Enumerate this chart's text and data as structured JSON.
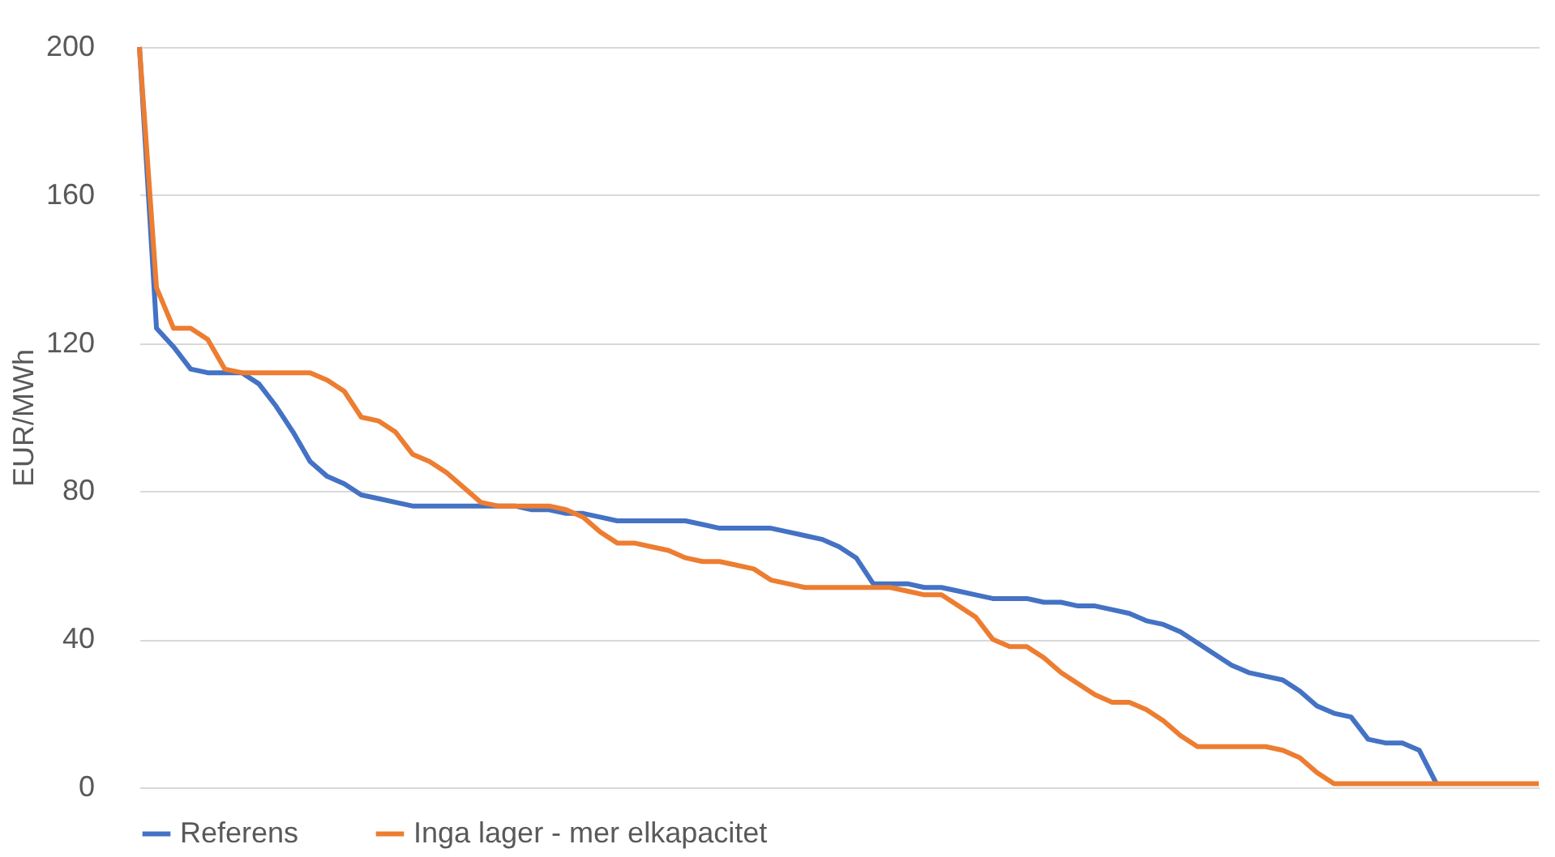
{
  "chart_data": {
    "type": "line",
    "ylabel": "EUR/MWh",
    "ylim": [
      0,
      200
    ],
    "yticks": [
      0,
      40,
      80,
      120,
      160,
      200
    ],
    "grid": "y",
    "legend": "bottom",
    "line_style": "solid",
    "marker": "none",
    "categories": [
      null,
      null,
      null,
      null,
      null,
      null,
      null,
      null,
      null,
      null,
      null,
      null,
      null,
      null,
      null,
      null,
      null,
      null,
      null,
      null,
      null,
      null,
      null,
      null,
      null,
      null,
      null,
      null,
      null,
      null,
      null,
      null,
      null,
      null,
      null,
      null,
      null,
      null,
      null,
      null,
      null,
      null,
      null,
      null,
      null,
      null,
      null,
      null,
      null,
      null,
      null,
      null,
      null,
      null,
      null,
      null,
      null,
      null,
      null,
      null,
      null,
      null,
      null,
      null,
      null,
      null,
      null,
      null,
      null,
      null,
      null,
      null,
      null,
      null,
      null,
      null,
      null,
      null,
      null,
      null,
      null,
      null,
      null
    ],
    "series": [
      {
        "name": "Referens",
        "color": "#4472c4",
        "values": [
          200,
          124,
          119,
          113,
          112,
          112,
          112,
          109,
          103,
          96,
          88,
          84,
          82,
          79,
          78,
          77,
          76,
          76,
          76,
          76,
          76,
          76,
          76,
          75,
          75,
          74,
          74,
          73,
          72,
          72,
          72,
          72,
          72,
          71,
          70,
          70,
          70,
          70,
          69,
          68,
          67,
          65,
          62,
          55,
          55,
          55,
          54,
          54,
          53,
          52,
          51,
          51,
          51,
          50,
          50,
          49,
          49,
          48,
          47,
          45,
          44,
          42,
          39,
          36,
          33,
          31,
          30,
          29,
          26,
          22,
          20,
          19,
          13,
          12,
          12,
          10,
          1,
          null,
          null,
          null,
          null,
          null,
          null
        ]
      },
      {
        "name": "Inga lager - mer elkapacitet",
        "color": "#ed7d31",
        "values": [
          200,
          135,
          124,
          124,
          121,
          113,
          112,
          112,
          112,
          112,
          112,
          110,
          107,
          100,
          99,
          96,
          90,
          88,
          85,
          81,
          77,
          76,
          76,
          76,
          76,
          75,
          73,
          69,
          66,
          66,
          65,
          64,
          62,
          61,
          61,
          60,
          59,
          56,
          55,
          54,
          54,
          54,
          54,
          54,
          54,
          53,
          52,
          52,
          49,
          46,
          40,
          38,
          38,
          35,
          31,
          28,
          25,
          23,
          23,
          21,
          18,
          14,
          11,
          11,
          11,
          11,
          11,
          10,
          8,
          4,
          1,
          1,
          1,
          1,
          1,
          1,
          1,
          1,
          1,
          1,
          1,
          1,
          1
        ]
      }
    ]
  }
}
